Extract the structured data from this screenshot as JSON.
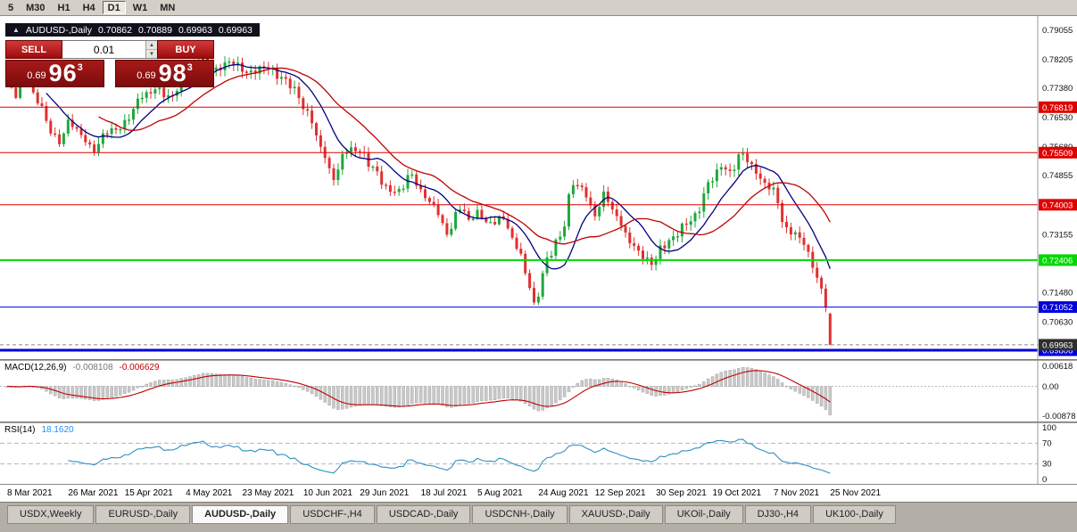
{
  "toolbar": {
    "timeframes": [
      {
        "label": "5",
        "active": false
      },
      {
        "label": "M30",
        "active": false
      },
      {
        "label": "H1",
        "active": false
      },
      {
        "label": "H4",
        "active": false
      },
      {
        "label": "D1",
        "active": true
      },
      {
        "label": "W1",
        "active": false
      },
      {
        "label": "MN",
        "active": false
      }
    ]
  },
  "chart_header": {
    "toggle_glyph": "▲",
    "symbol": "AUDUSD-,Daily",
    "open": "0.70862",
    "high": "0.70889",
    "low": "0.69963",
    "close": "0.69963"
  },
  "trade_panel": {
    "sell_label": "SELL",
    "buy_label": "BUY",
    "volume": "0.01",
    "sell_price_prefix": "0.69",
    "sell_price_big": "96",
    "sell_price_sup": "3",
    "buy_price_prefix": "0.69",
    "buy_price_big": "98",
    "buy_price_sup": "3"
  },
  "icons": {
    "spin_up": "▲",
    "spin_down": "▼"
  },
  "price_axis": {
    "ticks": [
      "0.79055",
      "0.78205",
      "0.77380",
      "0.76530",
      "0.75680",
      "0.74855",
      "0.73155",
      "0.71480",
      "0.70630"
    ],
    "levels": [
      {
        "price": "0.76819",
        "color": "#e00000",
        "width": 1
      },
      {
        "price": "0.75509",
        "color": "#e00000",
        "width": 1
      },
      {
        "price": "0.74003",
        "color": "#e00000",
        "width": 1
      },
      {
        "price": "0.72406",
        "color": "#00d800",
        "width": 2
      },
      {
        "price": "0.71052",
        "color": "#0000d8",
        "width": 1
      },
      {
        "price": "0.69806",
        "color": "#0000d8",
        "width": 3
      }
    ],
    "current": {
      "label": "0.69963",
      "badge_color": "#2f2f2f"
    }
  },
  "indicators": {
    "macd": {
      "label": "MACD(12,26,9)",
      "value_main": "-0.008108",
      "value_signal": "-0.006629",
      "axis": [
        "0.00618",
        "0.00",
        "-0.00878"
      ]
    },
    "rsi": {
      "label": "RSI(14)",
      "value": "18.1620",
      "axis": [
        "100",
        "70",
        "30",
        "0"
      ],
      "levels": [
        70,
        30
      ]
    }
  },
  "date_axis": {
    "labels": [
      "8 Mar 2021",
      "26 Mar 2021",
      "15 Apr 2021",
      "4 May 2021",
      "23 May 2021",
      "10 Jun 2021",
      "29 Jun 2021",
      "18 Jul 2021",
      "5 Aug 2021",
      "24 Aug 2021",
      "12 Sep 2021",
      "30 Sep 2021",
      "19 Oct 2021",
      "7 Nov 2021",
      "25 Nov 2021"
    ]
  },
  "tabs": [
    {
      "label": "USDX,Weekly",
      "active": false
    },
    {
      "label": "EURUSD-,Daily",
      "active": false
    },
    {
      "label": "AUDUSD-,Daily",
      "active": true
    },
    {
      "label": "USDCHF-,H4",
      "active": false
    },
    {
      "label": "USDCAD-,Daily",
      "active": false
    },
    {
      "label": "USDCNH-,Daily",
      "active": false
    },
    {
      "label": "XAUUSD-,Daily",
      "active": false
    },
    {
      "label": "UKOil-,Daily",
      "active": false
    },
    {
      "label": "DJ30-,H4",
      "active": false
    },
    {
      "label": "UK100-,Daily",
      "active": false
    }
  ],
  "colors": {
    "candle_up": "#1fa83c",
    "candle_down": "#e03030",
    "ma_blue": "#000080",
    "ma_red": "#c00000",
    "macd_hist": "#c9c9c9",
    "macd_hist_border": "#9c9c9c",
    "macd_signal": "#c00000",
    "rsi_line": "#2e8fc0"
  },
  "chart_data": {
    "type": "candlestick",
    "title": "AUDUSD-,Daily",
    "symbol": "AUDUSD-",
    "timeframe": "Daily",
    "candle_count": 190,
    "price_min": 0.6955,
    "price_max": 0.7945,
    "last_candle_ohlc": [
      0.70862,
      0.70889,
      0.69963,
      0.69963
    ],
    "current_price": 0.69963,
    "horizontal_levels": [
      0.76819,
      0.75509,
      0.74003,
      0.72406,
      0.71052,
      0.69806
    ],
    "close_waypoints": [
      [
        0,
        0.7745
      ],
      [
        2,
        0.7712
      ],
      [
        4,
        0.7782
      ],
      [
        7,
        0.77
      ],
      [
        10,
        0.7612
      ],
      [
        12,
        0.7585
      ],
      [
        14,
        0.7638
      ],
      [
        17,
        0.76
      ],
      [
        20,
        0.7562
      ],
      [
        23,
        0.7608
      ],
      [
        26,
        0.7628
      ],
      [
        28,
        0.7652
      ],
      [
        31,
        0.7716
      ],
      [
        34,
        0.7737
      ],
      [
        37,
        0.7706
      ],
      [
        41,
        0.7772
      ],
      [
        45,
        0.7818
      ],
      [
        48,
        0.779
      ],
      [
        52,
        0.7812
      ],
      [
        56,
        0.7778
      ],
      [
        60,
        0.7802
      ],
      [
        63,
        0.7762
      ],
      [
        66,
        0.7735
      ],
      [
        69,
        0.7665
      ],
      [
        72,
        0.7565
      ],
      [
        75,
        0.7482
      ],
      [
        78,
        0.7556
      ],
      [
        81,
        0.7562
      ],
      [
        84,
        0.7502
      ],
      [
        87,
        0.7452
      ],
      [
        90,
        0.7438
      ],
      [
        93,
        0.7488
      ],
      [
        95,
        0.7442
      ],
      [
        98,
        0.7392
      ],
      [
        101,
        0.7322
      ],
      [
        104,
        0.7392
      ],
      [
        106,
        0.7352
      ],
      [
        108,
        0.7382
      ],
      [
        111,
        0.7342
      ],
      [
        114,
        0.7362
      ],
      [
        117,
        0.7282
      ],
      [
        120,
        0.7165
      ],
      [
        121,
        0.7112
      ],
      [
        124,
        0.7242
      ],
      [
        127,
        0.7305
      ],
      [
        130,
        0.7468
      ],
      [
        132,
        0.7442
      ],
      [
        135,
        0.7372
      ],
      [
        137,
        0.7435
      ],
      [
        140,
        0.736
      ],
      [
        143,
        0.73
      ],
      [
        146,
        0.7248
      ],
      [
        148,
        0.7226
      ],
      [
        150,
        0.728
      ],
      [
        153,
        0.73
      ],
      [
        156,
        0.735
      ],
      [
        158,
        0.7372
      ],
      [
        162,
        0.7475
      ],
      [
        164,
        0.752
      ],
      [
        166,
        0.749
      ],
      [
        169,
        0.755
      ],
      [
        171,
        0.7515
      ],
      [
        174,
        0.7455
      ],
      [
        176,
        0.7442
      ],
      [
        179,
        0.733
      ],
      [
        181,
        0.731
      ],
      [
        183,
        0.7292
      ],
      [
        185,
        0.723
      ],
      [
        187,
        0.715
      ],
      [
        188,
        0.7108
      ],
      [
        189,
        0.69963
      ]
    ],
    "moving_averages": [
      {
        "color_name": "blue",
        "period": 10
      },
      {
        "color_name": "red",
        "period": 22
      }
    ],
    "indicators": {
      "macd": {
        "params": [
          12,
          26,
          9
        ],
        "main": -0.008108,
        "signal": -0.006629
      },
      "rsi": {
        "period": 14,
        "value": 18.162
      }
    },
    "x_labels": [
      "8 Mar 2021",
      "26 Mar 2021",
      "15 Apr 2021",
      "4 May 2021",
      "23 May 2021",
      "10 Jun 2021",
      "29 Jun 2021",
      "18 Jul 2021",
      "5 Aug 2021",
      "24 Aug 2021",
      "12 Sep 2021",
      "30 Sep 2021",
      "19 Oct 2021",
      "7 Nov 2021",
      "25 Nov 2021"
    ]
  }
}
